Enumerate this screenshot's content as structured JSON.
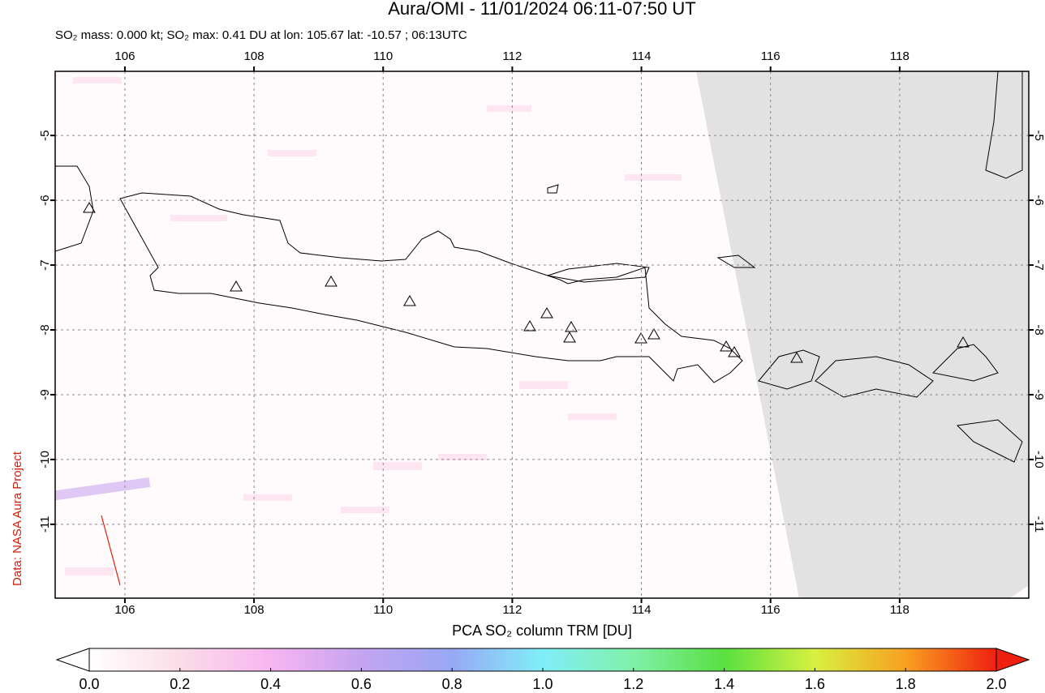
{
  "title": "Aura/OMI - 11/01/2024 06:11-07:50 UT",
  "subtitle": "SO₂ mass: 0.000 kt; SO₂ max: 0.41 DU at lon: 105.67 lat: -10.57 ; 06:13UTC",
  "credit": "Data: NASA Aura Project",
  "map": {
    "xlim": [
      104.92,
      120.0
    ],
    "ylim": [
      -12.14,
      -4.01
    ],
    "xticks": [
      106,
      108,
      110,
      112,
      114,
      116,
      118
    ],
    "yticks": [
      -5,
      -6,
      -7,
      -8,
      -9,
      -10,
      -11
    ],
    "grid": true
  },
  "colorbar": {
    "label": "PCA SO₂ column TRM [DU]",
    "lim": [
      0,
      2
    ],
    "ticks": [
      {
        "value": 0,
        "label": "0.0"
      },
      {
        "value": 0.2,
        "label": "0.2"
      },
      {
        "value": 0.4,
        "label": "0.4"
      },
      {
        "value": 0.6,
        "label": "0.6"
      },
      {
        "value": 0.8,
        "label": "0.8"
      },
      {
        "value": 1,
        "label": "1.0"
      },
      {
        "value": 1.2,
        "label": "1.2"
      },
      {
        "value": 1.4,
        "label": "1.4"
      },
      {
        "value": 1.6,
        "label": "1.6"
      },
      {
        "value": 1.8,
        "label": "1.8"
      },
      {
        "value": 2,
        "label": "2.0"
      }
    ]
  }
}
